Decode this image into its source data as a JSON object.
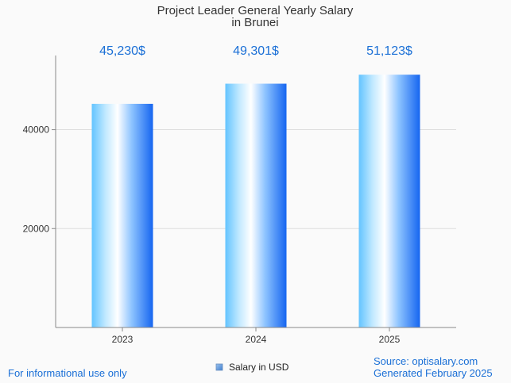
{
  "chart_data": {
    "type": "bar",
    "title": "Project Leader General Yearly Salary",
    "subtitle": "in Brunei",
    "categories": [
      "2023",
      "2024",
      "2025"
    ],
    "series": [
      {
        "name": "Salary in USD",
        "values": [
          45230,
          49301,
          51123
        ]
      }
    ],
    "data_labels": [
      "45,230$",
      "49,301$",
      "51,123$"
    ],
    "y_ticks": [
      20000,
      40000
    ],
    "ylim": [
      0,
      55000
    ],
    "grid": true,
    "legend_position": "bottom",
    "colors": {
      "bar_edge": "#1e6ff0",
      "bar_light": "#7fd0ff",
      "label": "#1a6fd6"
    }
  },
  "footer": {
    "left_note": "For informational use only",
    "source": "Source: optisalary.com",
    "generated": "Generated February 2025"
  }
}
